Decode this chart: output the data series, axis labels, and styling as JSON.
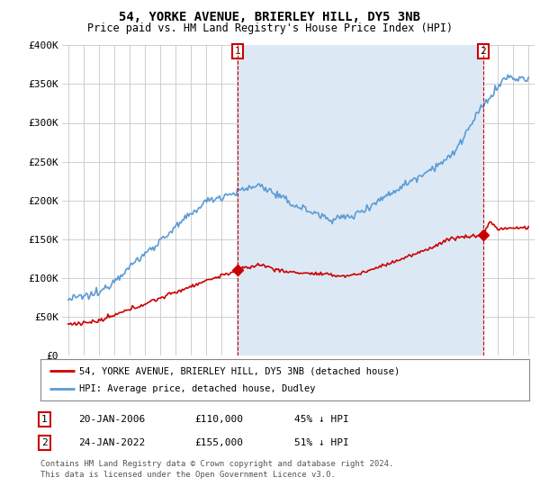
{
  "title": "54, YORKE AVENUE, BRIERLEY HILL, DY5 3NB",
  "subtitle": "Price paid vs. HM Land Registry's House Price Index (HPI)",
  "legend_line1": "54, YORKE AVENUE, BRIERLEY HILL, DY5 3NB (detached house)",
  "legend_line2": "HPI: Average price, detached house, Dudley",
  "sale1_date": 2006.05,
  "sale1_price": 110000,
  "sale1_label": "20-JAN-2006",
  "sale1_price_label": "£110,000",
  "sale1_pct": "45% ↓ HPI",
  "sale1_num": "1",
  "sale2_date": 2022.05,
  "sale2_price": 155000,
  "sale2_label": "24-JAN-2022",
  "sale2_price_label": "£155,000",
  "sale2_pct": "51% ↓ HPI",
  "sale2_num": "2",
  "footnote1": "Contains HM Land Registry data © Crown copyright and database right 2024.",
  "footnote2": "This data is licensed under the Open Government Licence v3.0.",
  "red_color": "#cc0000",
  "blue_color": "#5b9bd5",
  "blue_fill": "#dce9f5",
  "background_color": "#ffffff",
  "grid_color": "#c8c8c8",
  "ylim_max": 400000,
  "xlim_min": 1994.6,
  "xlim_max": 2025.4
}
